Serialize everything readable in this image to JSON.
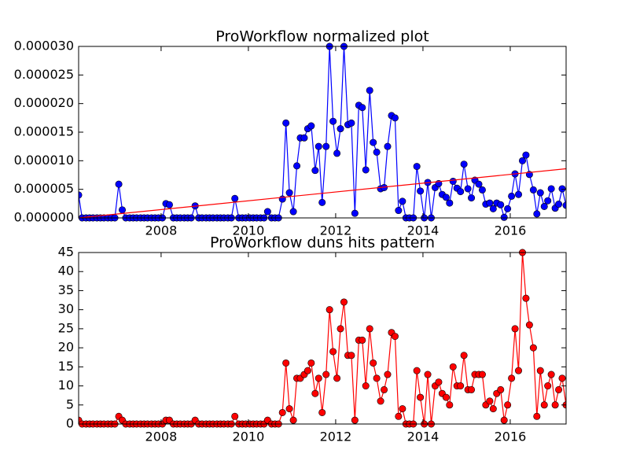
{
  "chart_data": [
    {
      "type": "line",
      "title": "ProWorkflow normalized plot",
      "x": [
        2006.11,
        2006.19,
        2006.28,
        2006.36,
        2006.44,
        2006.53,
        2006.61,
        2006.69,
        2006.78,
        2006.86,
        2006.94,
        2007.03,
        2007.11,
        2007.19,
        2007.28,
        2007.36,
        2007.44,
        2007.53,
        2007.61,
        2007.69,
        2007.78,
        2007.86,
        2007.94,
        2008.03,
        2008.11,
        2008.19,
        2008.28,
        2008.36,
        2008.44,
        2008.53,
        2008.61,
        2008.69,
        2008.78,
        2008.86,
        2008.94,
        2009.03,
        2009.11,
        2009.19,
        2009.28,
        2009.36,
        2009.44,
        2009.53,
        2009.61,
        2009.69,
        2009.78,
        2009.86,
        2009.94,
        2010.03,
        2010.11,
        2010.19,
        2010.28,
        2010.36,
        2010.44,
        2010.53,
        2010.61,
        2010.69,
        2010.78,
        2010.86,
        2010.94,
        2011.03,
        2011.11,
        2011.19,
        2011.28,
        2011.36,
        2011.44,
        2011.53,
        2011.61,
        2011.69,
        2011.78,
        2011.86,
        2011.94,
        2012.03,
        2012.11,
        2012.19,
        2012.28,
        2012.36,
        2012.44,
        2012.53,
        2012.61,
        2012.69,
        2012.78,
        2012.86,
        2012.94,
        2013.03,
        2013.11,
        2013.19,
        2013.28,
        2013.36,
        2013.44,
        2013.53,
        2013.61,
        2013.69,
        2013.78,
        2013.86,
        2013.94,
        2014.03,
        2014.11,
        2014.19,
        2014.28,
        2014.36,
        2014.44,
        2014.53,
        2014.61,
        2014.69,
        2014.78,
        2014.86,
        2014.94,
        2015.03,
        2015.11,
        2015.19,
        2015.28,
        2015.36,
        2015.44,
        2015.53,
        2015.61,
        2015.69,
        2015.78,
        2015.86,
        2015.94,
        2016.03,
        2016.11,
        2016.19,
        2016.28,
        2016.36,
        2016.44,
        2016.53,
        2016.61,
        2016.69,
        2016.78,
        2016.86,
        2016.94,
        2017.03,
        2017.11,
        2017.19,
        2017.28
      ],
      "series": [
        {
          "color": "#0000ff",
          "markers": true,
          "values": [
            4e-06,
            0,
            0,
            0,
            0,
            0,
            0,
            0,
            0,
            0,
            0,
            5.9e-06,
            1.4e-06,
            0,
            0,
            0,
            0,
            0,
            0,
            0,
            0,
            0,
            0,
            0,
            2.5e-06,
            2.3e-06,
            0,
            0,
            0,
            0,
            0,
            0,
            2.1e-06,
            0,
            0,
            0,
            0,
            0,
            0,
            0,
            0,
            0,
            0,
            3.4e-06,
            0,
            0,
            0,
            0,
            0,
            0,
            0,
            0,
            1.1e-06,
            0,
            0,
            0,
            3.3e-06,
            1.66e-05,
            4.4e-06,
            1.1e-06,
            9.1e-06,
            1.4e-05,
            1.4e-05,
            1.56e-05,
            1.61e-05,
            8.3e-06,
            1.25e-05,
            2.7e-06,
            1.25e-05,
            3e-05,
            1.69e-05,
            1.13e-05,
            1.56e-05,
            3e-05,
            1.63e-05,
            1.66e-05,
            8e-07,
            1.97e-05,
            1.93e-05,
            8.4e-06,
            2.23e-05,
            1.32e-05,
            1.15e-05,
            5.1e-06,
            5.3e-06,
            1.25e-05,
            1.79e-05,
            1.75e-05,
            1.3e-06,
            2.9e-06,
            0,
            0,
            0,
            9e-06,
            4.7e-06,
            0,
            6.2e-06,
            0,
            5.3e-06,
            6e-06,
            4.1e-06,
            3.6e-06,
            2.6e-06,
            6.4e-06,
            5.2e-06,
            4.6e-06,
            9.4e-06,
            5.1e-06,
            3.5e-06,
            6.6e-06,
            5.9e-06,
            4.9e-06,
            2.4e-06,
            2.6e-06,
            1.6e-06,
            2.6e-06,
            2.3e-06,
            1e-07,
            1.6e-06,
            3.8e-06,
            7.7e-06,
            4.1e-06,
            1e-05,
            1.1e-05,
            7.6e-06,
            4.9e-06,
            7e-07,
            4.4e-06,
            2e-06,
            3e-06,
            5.1e-06,
            1.7e-06,
            2.4e-06,
            5.1e-06,
            2.2e-06
          ]
        },
        {
          "color": "#ff0000",
          "markers": false,
          "x": [
            2006.11,
            2017.28
          ],
          "values": [
            0,
            8.6e-06
          ]
        }
      ],
      "xlim": [
        2006.11,
        2017.28
      ],
      "xticks": [
        2008,
        2010,
        2012,
        2014,
        2016
      ],
      "ylim": [
        0,
        3e-05
      ],
      "yticks": [
        {
          "value": 0,
          "label": "0.000000"
        },
        {
          "value": 5e-06,
          "label": "0.000005"
        },
        {
          "value": 1e-05,
          "label": "0.000010"
        },
        {
          "value": 1.5e-05,
          "label": "0.000015"
        },
        {
          "value": 2e-05,
          "label": "0.000020"
        },
        {
          "value": 2.5e-05,
          "label": "0.000025"
        },
        {
          "value": 3e-05,
          "label": "0.000030"
        }
      ]
    },
    {
      "type": "line",
      "title": "ProWorkflow duns hits pattern",
      "x": [
        2006.11,
        2006.19,
        2006.28,
        2006.36,
        2006.44,
        2006.53,
        2006.61,
        2006.69,
        2006.78,
        2006.86,
        2006.94,
        2007.03,
        2007.11,
        2007.19,
        2007.28,
        2007.36,
        2007.44,
        2007.53,
        2007.61,
        2007.69,
        2007.78,
        2007.86,
        2007.94,
        2008.03,
        2008.11,
        2008.19,
        2008.28,
        2008.36,
        2008.44,
        2008.53,
        2008.61,
        2008.69,
        2008.78,
        2008.86,
        2008.94,
        2009.03,
        2009.11,
        2009.19,
        2009.28,
        2009.36,
        2009.44,
        2009.53,
        2009.61,
        2009.69,
        2009.78,
        2009.86,
        2009.94,
        2010.03,
        2010.11,
        2010.19,
        2010.28,
        2010.36,
        2010.44,
        2010.53,
        2010.61,
        2010.69,
        2010.78,
        2010.86,
        2010.94,
        2011.03,
        2011.11,
        2011.19,
        2011.28,
        2011.36,
        2011.44,
        2011.53,
        2011.61,
        2011.69,
        2011.78,
        2011.86,
        2011.94,
        2012.03,
        2012.11,
        2012.19,
        2012.28,
        2012.36,
        2012.44,
        2012.53,
        2012.61,
        2012.69,
        2012.78,
        2012.86,
        2012.94,
        2013.03,
        2013.11,
        2013.19,
        2013.28,
        2013.36,
        2013.44,
        2013.53,
        2013.61,
        2013.69,
        2013.78,
        2013.86,
        2013.94,
        2014.03,
        2014.11,
        2014.19,
        2014.28,
        2014.36,
        2014.44,
        2014.53,
        2014.61,
        2014.69,
        2014.78,
        2014.86,
        2014.94,
        2015.03,
        2015.11,
        2015.19,
        2015.28,
        2015.36,
        2015.44,
        2015.53,
        2015.61,
        2015.69,
        2015.78,
        2015.86,
        2015.94,
        2016.03,
        2016.11,
        2016.19,
        2016.28,
        2016.36,
        2016.44,
        2016.53,
        2016.61,
        2016.69,
        2016.78,
        2016.86,
        2016.94,
        2017.03,
        2017.11,
        2017.19,
        2017.28
      ],
      "series": [
        {
          "color": "#ff0000",
          "markers": true,
          "values": [
            1,
            0,
            0,
            0,
            0,
            0,
            0,
            0,
            0,
            0,
            0,
            2,
            1,
            0,
            0,
            0,
            0,
            0,
            0,
            0,
            0,
            0,
            0,
            0,
            1,
            1,
            0,
            0,
            0,
            0,
            0,
            0,
            1,
            0,
            0,
            0,
            0,
            0,
            0,
            0,
            0,
            0,
            0,
            2,
            0,
            0,
            0,
            0,
            0,
            0,
            0,
            0,
            1,
            0,
            0,
            0,
            3,
            16,
            4,
            1,
            12,
            12,
            13,
            14,
            16,
            8,
            12,
            3,
            13,
            30,
            19,
            12,
            25,
            32,
            18,
            18,
            1,
            22,
            22,
            10,
            25,
            16,
            12,
            6,
            9,
            13,
            24,
            23,
            2,
            4,
            0,
            0,
            0,
            14,
            7,
            0,
            13,
            0,
            10,
            11,
            8,
            7,
            5,
            15,
            10,
            10,
            18,
            9,
            9,
            13,
            13,
            13,
            5,
            6,
            4,
            8,
            9,
            1,
            5,
            12,
            25,
            14,
            45,
            33,
            26,
            20,
            2,
            14,
            5,
            10,
            13,
            5,
            9,
            12,
            5
          ]
        }
      ],
      "xlim": [
        2006.11,
        2017.28
      ],
      "xticks": [
        2008,
        2010,
        2012,
        2014,
        2016
      ],
      "ylim": [
        0,
        45
      ],
      "yticks": [
        0,
        5,
        10,
        15,
        20,
        25,
        30,
        35,
        40,
        45
      ]
    }
  ]
}
